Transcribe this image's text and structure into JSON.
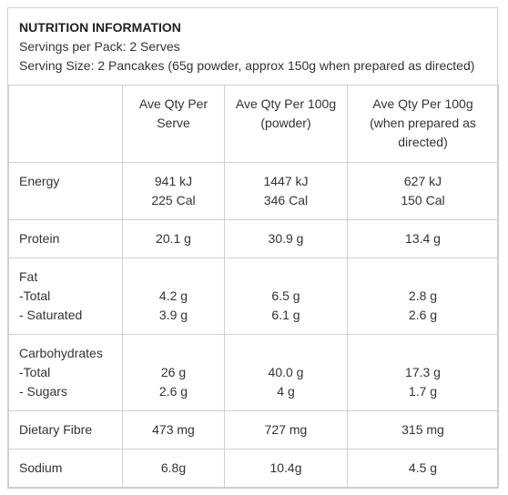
{
  "title": "NUTRITION INFORMATION",
  "servings_per_pack": "Servings per Pack: 2 Serves",
  "serving_size": "Serving Size: 2 Pancakes (65g powder, approx 150g when prepared as directed)",
  "columns": [
    [
      "Ave Qty Per",
      "Serve"
    ],
    [
      "Ave Qty Per 100g",
      "(powder)"
    ],
    [
      "Ave Qty Per 100g",
      "(when prepared as",
      "directed)"
    ]
  ],
  "rows": [
    {
      "label": [
        "Energy"
      ],
      "values": [
        [
          "941 kJ",
          "225 Cal"
        ],
        [
          "1447 kJ",
          "346 Cal"
        ],
        [
          "627 kJ",
          "150 Cal"
        ]
      ]
    },
    {
      "label": [
        "Protein"
      ],
      "values": [
        [
          "20.1 g"
        ],
        [
          "30.9 g"
        ],
        [
          "13.4 g"
        ]
      ]
    },
    {
      "label": [
        "Fat",
        "-Total",
        "- Saturated"
      ],
      "values": [
        [
          "",
          "4.2 g",
          "3.9 g"
        ],
        [
          "",
          "6.5 g",
          "6.1 g"
        ],
        [
          "",
          "2.8 g",
          "2.6 g"
        ]
      ]
    },
    {
      "label": [
        "Carbohydrates",
        "-Total",
        "- Sugars"
      ],
      "values": [
        [
          "",
          "26 g",
          "2.6 g"
        ],
        [
          "",
          "40.0 g",
          "4 g"
        ],
        [
          "",
          "17.3 g",
          "1.7 g"
        ]
      ]
    },
    {
      "label": [
        "Dietary Fibre"
      ],
      "values": [
        [
          "473 mg"
        ],
        [
          "727 mg"
        ],
        [
          "315 mg"
        ]
      ]
    },
    {
      "label": [
        "Sodium"
      ],
      "values": [
        [
          "6.8g"
        ],
        [
          "10.4g"
        ],
        [
          "4.5 g"
        ]
      ]
    }
  ]
}
